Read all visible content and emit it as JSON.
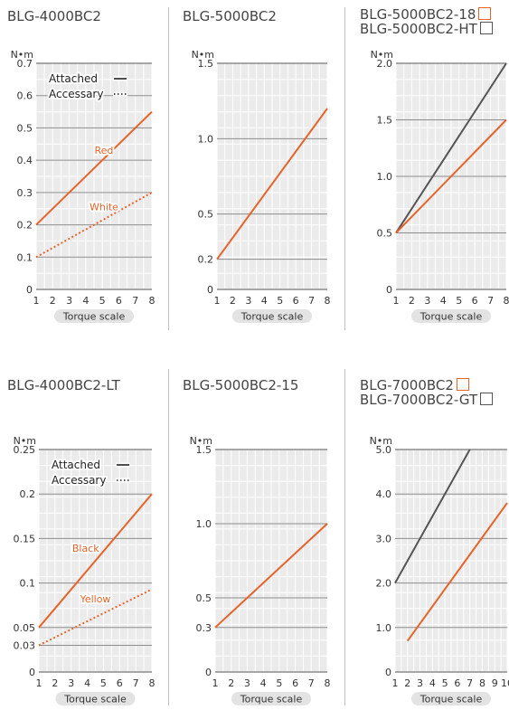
{
  "colors": {
    "accent": "#e8632a",
    "gray_line": "#555555",
    "plot_bg": "#ebebeb",
    "grid_minor": "#ffffff",
    "grid_major": "#8c8c8c",
    "pill_bg": "#e3e3e3"
  },
  "legend": {
    "attached_label": "Attached",
    "accessary_label": "Accessary"
  },
  "chart_data": [
    {
      "type": "line",
      "title": "BLG-4000BC2",
      "ylabel": "N•m",
      "xlabel": "Torque scale",
      "xlim": [
        1,
        8
      ],
      "ylim": [
        0,
        0.7
      ],
      "xticks": [
        "1",
        "2",
        "3",
        "4",
        "5",
        "6",
        "7",
        "8"
      ],
      "yticks": [
        {
          "value": 0,
          "label": "0"
        },
        {
          "value": 0.1,
          "label": "0.1"
        },
        {
          "value": 0.2,
          "label": "0.2"
        },
        {
          "value": 0.3,
          "label": "0.3"
        },
        {
          "value": 0.4,
          "label": "0.4"
        },
        {
          "value": 0.5,
          "label": "0.5"
        },
        {
          "value": 0.6,
          "label": "0.6"
        },
        {
          "value": 0.7,
          "label": "0.7"
        }
      ],
      "show_legend": true,
      "series": [
        {
          "name": "Red",
          "color": "accent",
          "style": "solid",
          "x": [
            1,
            8
          ],
          "y": [
            0.2,
            0.55
          ]
        },
        {
          "name": "White",
          "color": "accent",
          "style": "dotted",
          "x": [
            1,
            8
          ],
          "y": [
            0.1,
            0.3
          ]
        }
      ],
      "annotations": [
        {
          "text": "Red",
          "x": 5.1,
          "y": 0.42
        },
        {
          "text": "White",
          "x": 5.1,
          "y": 0.245
        }
      ]
    },
    {
      "type": "line",
      "title": "BLG-5000BC2",
      "ylabel": "N•m",
      "xlabel": "Torque scale",
      "xlim": [
        1,
        8
      ],
      "ylim": [
        0,
        1.5
      ],
      "xticks": [
        "1",
        "2",
        "3",
        "4",
        "5",
        "6",
        "7",
        "8"
      ],
      "yticks": [
        {
          "value": 0,
          "label": "0"
        },
        {
          "value": 0.2,
          "label": "0.2"
        },
        {
          "value": 0.5,
          "label": "0.5"
        },
        {
          "value": 1.0,
          "label": "1.0"
        },
        {
          "value": 1.5,
          "label": "1.5"
        }
      ],
      "show_legend": false,
      "series": [
        {
          "name": "",
          "color": "accent",
          "style": "solid",
          "x": [
            1,
            8
          ],
          "y": [
            0.2,
            1.2
          ]
        }
      ],
      "annotations": []
    },
    {
      "type": "line",
      "title_lines": [
        {
          "text": "BLG-5000BC2-18",
          "box": "accent"
        },
        {
          "text": "BLG-5000BC2-HT",
          "box": "gray_line"
        }
      ],
      "ylabel": "N•m",
      "xlabel": "Torque scale",
      "xlim": [
        1,
        8
      ],
      "ylim": [
        0,
        2.0
      ],
      "xticks": [
        "1",
        "2",
        "3",
        "4",
        "5",
        "6",
        "7",
        "8"
      ],
      "yticks": [
        {
          "value": 0,
          "label": "0"
        },
        {
          "value": 0.5,
          "label": "0.5"
        },
        {
          "value": 1.0,
          "label": "1.0"
        },
        {
          "value": 1.5,
          "label": "1.5"
        },
        {
          "value": 2.0,
          "label": "2.0"
        }
      ],
      "show_legend": false,
      "series": [
        {
          "name": "",
          "color": "gray_line",
          "style": "solid",
          "x": [
            1,
            8
          ],
          "y": [
            0.5,
            2.0
          ]
        },
        {
          "name": "",
          "color": "accent",
          "style": "solid",
          "x": [
            1,
            8
          ],
          "y": [
            0.5,
            1.5
          ]
        }
      ],
      "annotations": []
    },
    {
      "type": "line",
      "title": "BLG-4000BC2-LT",
      "ylabel": "N•m",
      "xlabel": "Torque scale",
      "xlim": [
        1,
        8
      ],
      "ylim": [
        0,
        0.25
      ],
      "xticks": [
        "1",
        "2",
        "3",
        "4",
        "5",
        "6",
        "7",
        "8"
      ],
      "yticks": [
        {
          "value": 0,
          "label": "0"
        },
        {
          "value": 0.03,
          "label": "0.03"
        },
        {
          "value": 0.05,
          "label": "0.05"
        },
        {
          "value": 0.1,
          "label": "0.1"
        },
        {
          "value": 0.15,
          "label": "0.15"
        },
        {
          "value": 0.2,
          "label": "0.2"
        },
        {
          "value": 0.25,
          "label": "0.25"
        }
      ],
      "show_legend": true,
      "series": [
        {
          "name": "Black",
          "color": "accent",
          "style": "solid",
          "x": [
            1,
            8
          ],
          "y": [
            0.05,
            0.2
          ]
        },
        {
          "name": "Yellow",
          "color": "accent",
          "style": "dotted",
          "x": [
            1,
            8
          ],
          "y": [
            0.03,
            0.093
          ]
        }
      ],
      "annotations": [
        {
          "text": "Black",
          "x": 3.9,
          "y": 0.135
        },
        {
          "text": "Yellow",
          "x": 4.5,
          "y": 0.078
        }
      ]
    },
    {
      "type": "line",
      "title": "BLG-5000BC2-15",
      "ylabel": "N•m",
      "xlabel": "Torque scale",
      "xlim": [
        1,
        8
      ],
      "ylim": [
        0,
        1.5
      ],
      "xticks": [
        "1",
        "2",
        "3",
        "4",
        "5",
        "6",
        "7",
        "8"
      ],
      "yticks": [
        {
          "value": 0,
          "label": "0"
        },
        {
          "value": 0.3,
          "label": "0.3"
        },
        {
          "value": 0.5,
          "label": "0.5"
        },
        {
          "value": 1.0,
          "label": "1.0"
        },
        {
          "value": 1.5,
          "label": "1.5"
        }
      ],
      "show_legend": false,
      "series": [
        {
          "name": "",
          "color": "accent",
          "style": "solid",
          "x": [
            1,
            8
          ],
          "y": [
            0.3,
            1.0
          ]
        }
      ],
      "annotations": []
    },
    {
      "type": "line",
      "title_lines": [
        {
          "text": "BLG-7000BC2",
          "box": "accent"
        },
        {
          "text": "BLG-7000BC2-GT",
          "box": "gray_line"
        }
      ],
      "ylabel": "N•m",
      "xlabel": "Torque scale",
      "xlim": [
        1,
        10
      ],
      "ylim": [
        0,
        5.0
      ],
      "xticks": [
        "1",
        "2",
        "3",
        "4",
        "5",
        "6",
        "7",
        "8",
        "9",
        "10"
      ],
      "yticks": [
        {
          "value": 0,
          "label": "0"
        },
        {
          "value": 1.0,
          "label": "1.0"
        },
        {
          "value": 2.0,
          "label": "2.0"
        },
        {
          "value": 3.0,
          "label": "3.0"
        },
        {
          "value": 4.0,
          "label": "4.0"
        },
        {
          "value": 5.0,
          "label": "5.0"
        }
      ],
      "show_legend": false,
      "series": [
        {
          "name": "",
          "color": "gray_line",
          "style": "solid",
          "x": [
            1,
            7
          ],
          "y": [
            2.0,
            5.0
          ]
        },
        {
          "name": "",
          "color": "accent",
          "style": "solid",
          "x": [
            2,
            10
          ],
          "y": [
            0.7,
            3.8
          ]
        }
      ],
      "annotations": []
    }
  ]
}
